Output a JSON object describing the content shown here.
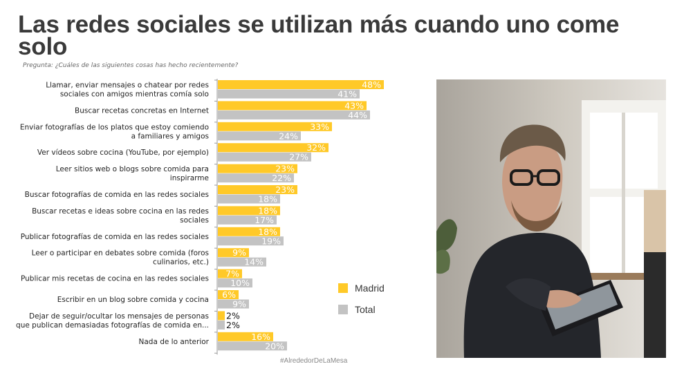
{
  "title": "Las redes sociales se utilizan más cuando uno come solo",
  "question": "Pregunta: ¿Cuáles de las siguientes cosas has hecho recientemente?",
  "footer": "#AlrededorDeLaMesa",
  "photo": {
    "icon": "man-using-tablet-photo"
  },
  "chart_data": {
    "type": "bar",
    "orientation": "horizontal",
    "categories": [
      [
        "Llamar, enviar mensajes o chatear por redes",
        "sociales con amigos mientras comía solo"
      ],
      [
        "Buscar recetas concretas en Internet"
      ],
      [
        "Enviar fotografías de los platos que estoy comiendo",
        "a familiares y amigos"
      ],
      [
        "Ver vídeos sobre cocina (YouTube, por ejemplo)"
      ],
      [
        "Leer sitios web o blogs sobre comida para",
        "inspirarme"
      ],
      [
        "Buscar fotografías de comida en las redes sociales"
      ],
      [
        "Buscar recetas e ideas sobre cocina en las redes",
        "sociales"
      ],
      [
        "Publicar fotografías de comida en las redes sociales"
      ],
      [
        "Leer o participar en debates sobre comida (foros",
        "culinarios, etc.)"
      ],
      [
        "Publicar mis recetas de cocina en las redes sociales"
      ],
      [
        "Escribir en un blog sobre comida y cocina"
      ],
      [
        "Dejar de seguir/ocultar los mensajes de personas",
        "que publican demasiadas fotografías de comida en..."
      ],
      [
        "Nada de lo anterior"
      ]
    ],
    "series": [
      {
        "name": "Madrid",
        "color": "#FFC928",
        "values": [
          48,
          43,
          33,
          32,
          23,
          23,
          18,
          18,
          9,
          7,
          6,
          2,
          16
        ]
      },
      {
        "name": "Total",
        "color": "#C3C3C3",
        "values": [
          41,
          44,
          24,
          27,
          22,
          18,
          17,
          19,
          14,
          10,
          9,
          2,
          20
        ]
      }
    ],
    "value_suffix": "%",
    "xlim": [
      0,
      50
    ],
    "grid": false,
    "legend_position": "bottom-right"
  }
}
